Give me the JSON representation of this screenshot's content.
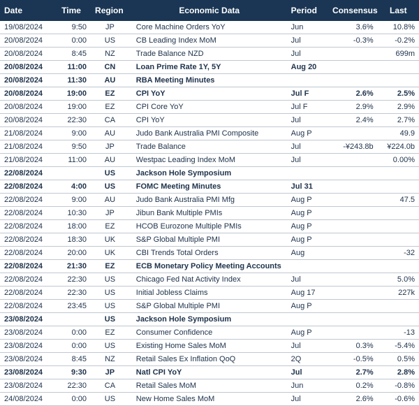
{
  "colors": {
    "header_bg": "#1a3654",
    "header_text": "#ffffff",
    "row_text": "#20344d",
    "row_border": "#c0c8d0"
  },
  "columns": [
    {
      "key": "date",
      "label": "Date",
      "class": "col-date"
    },
    {
      "key": "time",
      "label": "Time",
      "class": "col-time"
    },
    {
      "key": "region",
      "label": "Region",
      "class": "col-region"
    },
    {
      "key": "data",
      "label": "Economic Data",
      "class": "col-data"
    },
    {
      "key": "period",
      "label": "Period",
      "class": "col-period"
    },
    {
      "key": "consensus",
      "label": "Consensus",
      "class": "col-consensus"
    },
    {
      "key": "last",
      "label": "Last",
      "class": "col-last"
    }
  ],
  "rows": [
    {
      "date": "19/08/2024",
      "time": "9:50",
      "region": "JP",
      "data": "Core Machine Orders YoY",
      "period": "Jun",
      "consensus": "3.6%",
      "last": "10.8%",
      "bold": false
    },
    {
      "date": "20/08/2024",
      "time": "0:00",
      "region": "US",
      "data": "CB Leading Index MoM",
      "period": "Jul",
      "consensus": "-0.3%",
      "last": "-0.2%",
      "bold": false
    },
    {
      "date": "20/08/2024",
      "time": "8:45",
      "region": "NZ",
      "data": "Trade Balance NZD",
      "period": "Jul",
      "consensus": "",
      "last": "699m",
      "bold": false
    },
    {
      "date": "20/08/2024",
      "time": "11:00",
      "region": "CN",
      "data": "Loan Prime Rate 1Y, 5Y",
      "period": "Aug 20",
      "consensus": "",
      "last": "",
      "bold": true
    },
    {
      "date": "20/08/2024",
      "time": "11:30",
      "region": "AU",
      "data": "RBA Meeting Minutes",
      "period": "",
      "consensus": "",
      "last": "",
      "bold": true
    },
    {
      "date": "20/08/2024",
      "time": "19:00",
      "region": "EZ",
      "data": "CPI YoY",
      "period": "Jul F",
      "consensus": "2.6%",
      "last": "2.5%",
      "bold": true
    },
    {
      "date": "20/08/2024",
      "time": "19:00",
      "region": "EZ",
      "data": "CPI Core YoY",
      "period": "Jul F",
      "consensus": "2.9%",
      "last": "2.9%",
      "bold": false
    },
    {
      "date": "20/08/2024",
      "time": "22:30",
      "region": "CA",
      "data": "CPI YoY",
      "period": "Jul",
      "consensus": "2.4%",
      "last": "2.7%",
      "bold": false
    },
    {
      "date": "21/08/2024",
      "time": "9:00",
      "region": "AU",
      "data": "Judo Bank Australia PMI Composite",
      "period": "Aug P",
      "consensus": "",
      "last": "49.9",
      "bold": false
    },
    {
      "date": "21/08/2024",
      "time": "9:50",
      "region": "JP",
      "data": "Trade Balance",
      "period": "Jul",
      "consensus": "-¥243.8b",
      "last": "¥224.0b",
      "bold": false
    },
    {
      "date": "21/08/2024",
      "time": "11:00",
      "region": "AU",
      "data": "Westpac Leading Index MoM",
      "period": "Jul",
      "consensus": "",
      "last": "0.00%",
      "bold": false
    },
    {
      "date": "22/08/2024",
      "time": "",
      "region": "US",
      "data": "Jackson Hole Symposium",
      "period": "",
      "consensus": "",
      "last": "",
      "bold": true
    },
    {
      "date": "22/08/2024",
      "time": "4:00",
      "region": "US",
      "data": "FOMC Meeting Minutes",
      "period": "Jul 31",
      "consensus": "",
      "last": "",
      "bold": true
    },
    {
      "date": "22/08/2024",
      "time": "9:00",
      "region": "AU",
      "data": "Judo Bank Australia PMI Mfg",
      "period": "Aug P",
      "consensus": "",
      "last": "47.5",
      "bold": false
    },
    {
      "date": "22/08/2024",
      "time": "10:30",
      "region": "JP",
      "data": "Jibun Bank Multiple PMIs",
      "period": "Aug P",
      "consensus": "",
      "last": "",
      "bold": false
    },
    {
      "date": "22/08/2024",
      "time": "18:00",
      "region": "EZ",
      "data": "HCOB Eurozone Multiple PMIs",
      "period": "Aug P",
      "consensus": "",
      "last": "",
      "bold": false
    },
    {
      "date": "22/08/2024",
      "time": "18:30",
      "region": "UK",
      "data": "S&P Global Multiple PMI",
      "period": "Aug P",
      "consensus": "",
      "last": "",
      "bold": false
    },
    {
      "date": "22/08/2024",
      "time": "20:00",
      "region": "UK",
      "data": "CBI Trends Total Orders",
      "period": "Aug",
      "consensus": "",
      "last": "-32",
      "bold": false
    },
    {
      "date": "22/08/2024",
      "time": "21:30",
      "region": "EZ",
      "data": "ECB Monetary Policy Meeting Accounts",
      "period": "",
      "consensus": "",
      "last": "",
      "bold": true
    },
    {
      "date": "22/08/2024",
      "time": "22:30",
      "region": "US",
      "data": "Chicago Fed Nat Activity Index",
      "period": "Jul",
      "consensus": "",
      "last": "5.0%",
      "bold": false
    },
    {
      "date": "22/08/2024",
      "time": "22:30",
      "region": "US",
      "data": "Initial Jobless Claims",
      "period": "Aug 17",
      "consensus": "",
      "last": "227k",
      "bold": false
    },
    {
      "date": "22/08/2024",
      "time": "23:45",
      "region": "US",
      "data": "S&P Global Multiple PMI",
      "period": "Aug P",
      "consensus": "",
      "last": "",
      "bold": false
    },
    {
      "date": "23/08/2024",
      "time": "",
      "region": "US",
      "data": "Jackson Hole Symposium",
      "period": "",
      "consensus": "",
      "last": "",
      "bold": true
    },
    {
      "date": "23/08/2024",
      "time": "0:00",
      "region": "EZ",
      "data": "Consumer Confidence",
      "period": "Aug P",
      "consensus": "",
      "last": "-13",
      "bold": false
    },
    {
      "date": "23/08/2024",
      "time": "0:00",
      "region": "US",
      "data": "Existing Home Sales MoM",
      "period": "Jul",
      "consensus": "0.3%",
      "last": "-5.4%",
      "bold": false
    },
    {
      "date": "23/08/2024",
      "time": "8:45",
      "region": "NZ",
      "data": "Retail Sales Ex Inflation QoQ",
      "period": "2Q",
      "consensus": "-0.5%",
      "last": "0.5%",
      "bold": false
    },
    {
      "date": "23/08/2024",
      "time": "9:30",
      "region": "JP",
      "data": "Natl CPI YoY",
      "period": "Jul",
      "consensus": "2.7%",
      "last": "2.8%",
      "bold": true
    },
    {
      "date": "23/08/2024",
      "time": "22:30",
      "region": "CA",
      "data": "Retail Sales MoM",
      "period": "Jun",
      "consensus": "0.2%",
      "last": "-0.8%",
      "bold": false
    },
    {
      "date": "24/08/2024",
      "time": "0:00",
      "region": "US",
      "data": "New Home Sales MoM",
      "period": "Jul",
      "consensus": "2.6%",
      "last": "-0.6%",
      "bold": false
    }
  ]
}
